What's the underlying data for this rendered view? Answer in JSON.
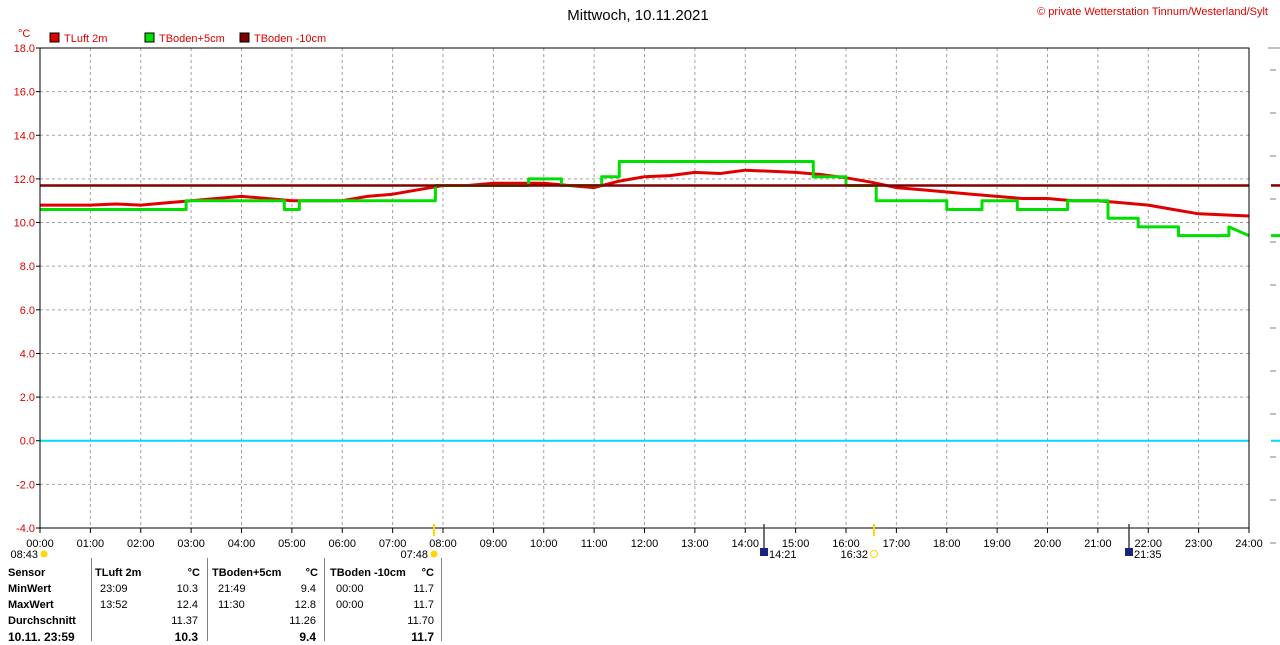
{
  "copyright": "© private Wetterstation Tinnum/Westerland/Sylt",
  "table": {
    "header": {
      "sensor": "Sensor",
      "s1": "TLuft 2m",
      "u1": "°C",
      "s2": "TBoden+5cm",
      "u2": "°C",
      "s3": "TBoden -10cm",
      "u3": "°C"
    },
    "rows": [
      {
        "label": "MinWert",
        "t1": "23:09",
        "v1": "10.3",
        "t2": "21:49",
        "v2": "9.4",
        "t3": "00:00",
        "v3": "11.7"
      },
      {
        "label": "MaxWert",
        "t1": "13:52",
        "v1": "12.4",
        "t2": "11:30",
        "v2": "12.8",
        "t3": "00:00",
        "v3": "11.7"
      },
      {
        "label": "Durchschnitt",
        "t1": "",
        "v1": "11.37",
        "t2": "",
        "v2": "11.26",
        "t3": "",
        "v3": "11.70"
      },
      {
        "label": "10.11. 23:59",
        "t1": "",
        "v1": "10.3",
        "t2": "",
        "v2": "9.4",
        "t3": "",
        "v3": "11.7"
      }
    ]
  },
  "chart_data": {
    "type": "line",
    "title": "Mittwoch, 10.11.2021",
    "ylabel": "°C",
    "ylim": [
      -4,
      18
    ],
    "xlim": [
      0,
      24
    ],
    "yticks": [
      "18.0",
      "16.0",
      "14.0",
      "12.0",
      "10.0",
      "8.0",
      "6.0",
      "4.0",
      "2.0",
      "0.0",
      "-2.0",
      "-4.0"
    ],
    "xticks": [
      "00:00",
      "01:00",
      "02:00",
      "03:00",
      "04:00",
      "05:00",
      "06:00",
      "07:00",
      "08:00",
      "09:00",
      "10:00",
      "11:00",
      "12:00",
      "13:00",
      "14:00",
      "15:00",
      "16:00",
      "17:00",
      "18:00",
      "19:00",
      "20:00",
      "21:00",
      "22:00",
      "23:00",
      "24:00"
    ],
    "grid": true,
    "legend_position": "top-left",
    "zero_line_color": "#00d8ff",
    "sun_events": [
      {
        "label": "08:43",
        "hour": 8.72
      },
      {
        "label": "07:48",
        "hour": 7.8
      },
      {
        "label": "14:21",
        "hour": 14.35
      },
      {
        "label": "16:32",
        "hour": 16.53
      },
      {
        "label": "21:35",
        "hour": 21.58
      }
    ],
    "series": [
      {
        "name": "TLuft 2m",
        "color": "#e00000",
        "x": [
          0,
          0.5,
          1,
          1.5,
          2,
          2.5,
          3,
          3.5,
          4,
          4.5,
          5,
          5.5,
          6,
          6.5,
          7,
          7.5,
          8,
          8.5,
          9,
          9.5,
          10,
          10.5,
          11,
          11.5,
          12,
          12.5,
          13,
          13.5,
          14,
          14.5,
          15,
          15.5,
          16,
          16.5,
          17,
          17.5,
          18,
          18.5,
          19,
          19.5,
          20,
          20.5,
          21,
          21.5,
          22,
          22.5,
          23,
          23.5,
          24
        ],
        "values": [
          10.8,
          10.8,
          10.8,
          10.85,
          10.8,
          10.9,
          11.0,
          11.1,
          11.2,
          11.1,
          11.0,
          11.0,
          11.0,
          11.2,
          11.3,
          11.5,
          11.7,
          11.7,
          11.8,
          11.8,
          11.8,
          11.7,
          11.6,
          11.9,
          12.1,
          12.15,
          12.3,
          12.25,
          12.4,
          12.35,
          12.3,
          12.2,
          12.05,
          11.85,
          11.6,
          11.5,
          11.4,
          11.3,
          11.2,
          11.1,
          11.1,
          11.0,
          11.0,
          10.9,
          10.8,
          10.6,
          10.4,
          10.35,
          10.3
        ]
      },
      {
        "name": "TBoden+5cm",
        "color": "#00e000",
        "x": [
          0,
          2.9,
          2.9,
          4.85,
          4.85,
          5.15,
          5.15,
          5.35,
          5.35,
          7.85,
          7.85,
          9.7,
          9.7,
          10.35,
          10.35,
          11.15,
          11.15,
          11.5,
          11.5,
          15.35,
          15.35,
          16.0,
          16.0,
          16.6,
          16.6,
          18.0,
          18.0,
          18.7,
          18.7,
          19.4,
          19.4,
          20.4,
          20.4,
          21.2,
          21.2,
          21.8,
          21.8,
          22.6,
          22.6,
          23.6,
          23.6,
          24
        ],
        "values": [
          10.6,
          10.6,
          11.0,
          11.0,
          10.6,
          10.6,
          11.0,
          11.0,
          11.0,
          11.0,
          11.7,
          11.7,
          12.0,
          12.0,
          11.7,
          11.7,
          12.1,
          12.1,
          12.8,
          12.8,
          12.1,
          12.1,
          11.7,
          11.7,
          11.0,
          11.0,
          10.6,
          10.6,
          11.0,
          11.0,
          10.6,
          10.6,
          11.0,
          11.0,
          10.2,
          10.2,
          9.8,
          9.8,
          9.4,
          9.4,
          9.8,
          9.4
        ]
      },
      {
        "name": "TBoden -10cm",
        "color": "#800000",
        "x": [
          0,
          24
        ],
        "values": [
          11.7,
          11.7
        ]
      }
    ]
  }
}
